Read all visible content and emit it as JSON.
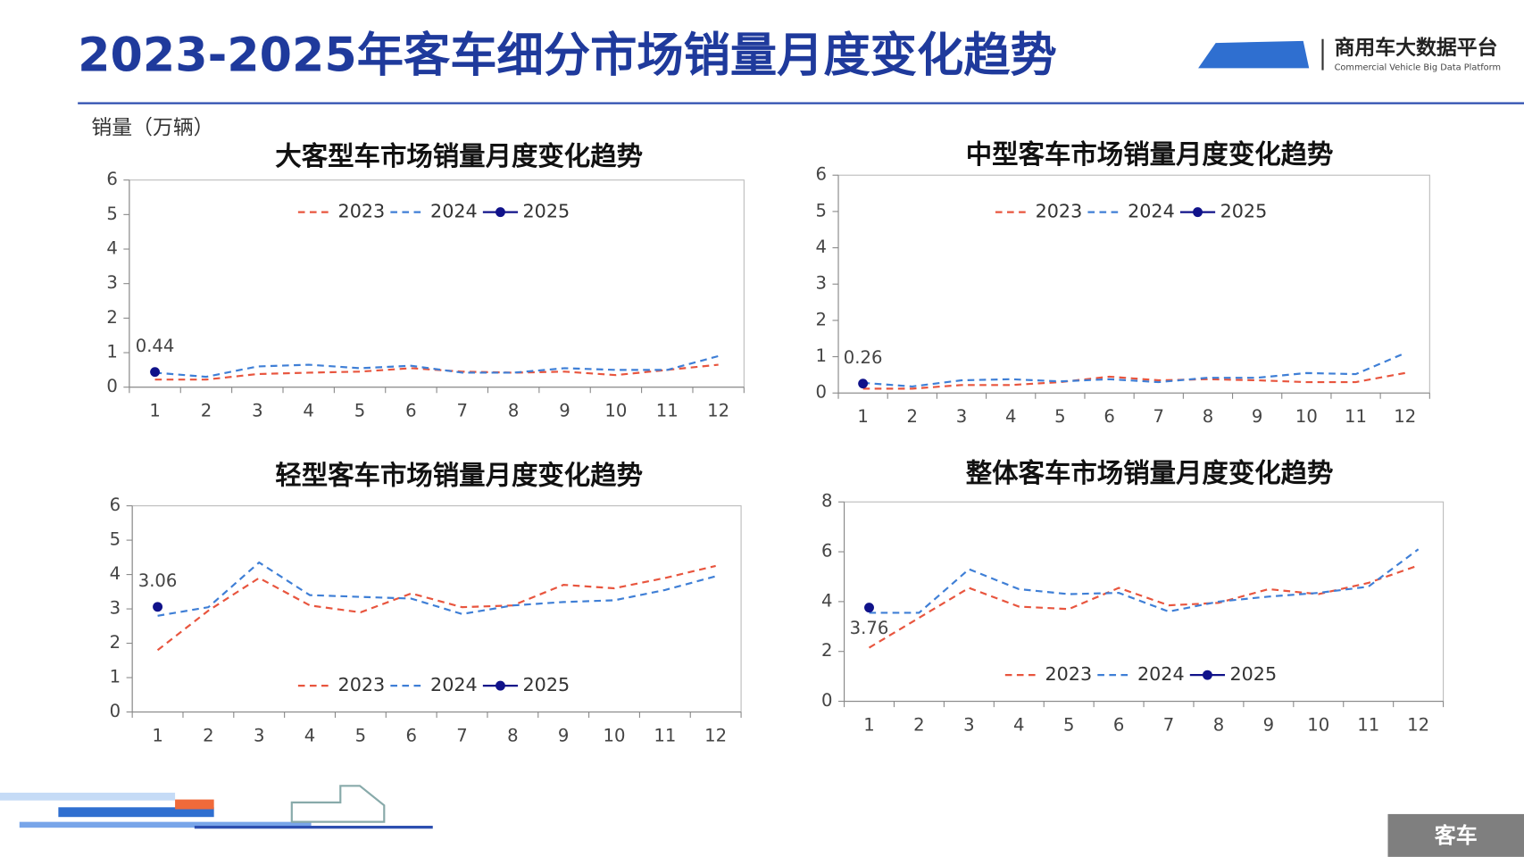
{
  "header": {
    "title": "2023-2025年客车细分市场销量月度变化趋势",
    "brand": "商用车大数据平台",
    "brand_en": "Commercial Vehicle Big Data Platform"
  },
  "y_unit": "销量（万辆）",
  "footer_tag": "客车",
  "chart_data": [
    {
      "type": "line",
      "title": "大客型车市场销量月度变化趋势",
      "categories": [
        "1",
        "2",
        "3",
        "4",
        "5",
        "6",
        "7",
        "8",
        "9",
        "10",
        "11",
        "12"
      ],
      "ylim": [
        0,
        6
      ],
      "yticks": [
        0,
        1,
        2,
        3,
        4,
        5,
        6
      ],
      "legend": "top",
      "label_position": "above",
      "series": [
        {
          "name": "2023",
          "color": "#e8553e",
          "style": "dashed",
          "values": [
            0.22,
            0.22,
            0.38,
            0.42,
            0.45,
            0.55,
            0.45,
            0.42,
            0.45,
            0.35,
            0.5,
            0.65
          ]
        },
        {
          "name": "2024",
          "color": "#3f7fd6",
          "style": "dashed",
          "values": [
            0.42,
            0.3,
            0.6,
            0.65,
            0.55,
            0.62,
            0.42,
            0.42,
            0.55,
            0.5,
            0.5,
            0.9
          ]
        },
        {
          "name": "2025",
          "color": "#10128a",
          "style": "solid",
          "values": [
            0.44,
            null,
            null,
            null,
            null,
            null,
            null,
            null,
            null,
            null,
            null,
            null
          ]
        }
      ]
    },
    {
      "type": "line",
      "title": "中型客车市场销量月度变化趋势",
      "categories": [
        "1",
        "2",
        "3",
        "4",
        "5",
        "6",
        "7",
        "8",
        "9",
        "10",
        "11",
        "12"
      ],
      "ylim": [
        0,
        6
      ],
      "yticks": [
        0,
        1,
        2,
        3,
        4,
        5,
        6
      ],
      "legend": "top",
      "label_position": "above",
      "series": [
        {
          "name": "2023",
          "color": "#e8553e",
          "style": "dashed",
          "values": [
            0.12,
            0.12,
            0.22,
            0.22,
            0.3,
            0.45,
            0.35,
            0.38,
            0.35,
            0.3,
            0.3,
            0.55
          ]
        },
        {
          "name": "2024",
          "color": "#3f7fd6",
          "style": "dashed",
          "values": [
            0.28,
            0.18,
            0.35,
            0.38,
            0.32,
            0.38,
            0.3,
            0.42,
            0.42,
            0.55,
            0.52,
            1.1
          ]
        },
        {
          "name": "2025",
          "color": "#10128a",
          "style": "solid",
          "values": [
            0.26,
            null,
            null,
            null,
            null,
            null,
            null,
            null,
            null,
            null,
            null,
            null
          ]
        }
      ]
    },
    {
      "type": "line",
      "title": "轻型客车市场销量月度变化趋势",
      "categories": [
        "1",
        "2",
        "3",
        "4",
        "5",
        "6",
        "7",
        "8",
        "9",
        "10",
        "11",
        "12"
      ],
      "ylim": [
        0,
        6
      ],
      "yticks": [
        0,
        1,
        2,
        3,
        4,
        5,
        6
      ],
      "legend": "bottom",
      "label_position": "above",
      "series": [
        {
          "name": "2023",
          "color": "#e8553e",
          "style": "dashed",
          "values": [
            1.8,
            2.95,
            3.9,
            3.1,
            2.9,
            3.45,
            3.05,
            3.1,
            3.7,
            3.6,
            3.9,
            4.25
          ]
        },
        {
          "name": "2024",
          "color": "#3f7fd6",
          "style": "dashed",
          "values": [
            2.8,
            3.05,
            4.35,
            3.4,
            3.35,
            3.3,
            2.85,
            3.1,
            3.2,
            3.25,
            3.55,
            3.95
          ]
        },
        {
          "name": "2025",
          "color": "#10128a",
          "style": "solid",
          "values": [
            3.06,
            null,
            null,
            null,
            null,
            null,
            null,
            null,
            null,
            null,
            null,
            null
          ]
        }
      ]
    },
    {
      "type": "line",
      "title": "整体客车市场销量月度变化趋势",
      "categories": [
        "1",
        "2",
        "3",
        "4",
        "5",
        "6",
        "7",
        "8",
        "9",
        "10",
        "11",
        "12"
      ],
      "ylim": [
        0,
        8
      ],
      "yticks": [
        0,
        2,
        4,
        6,
        8
      ],
      "legend": "bottom",
      "label_position": "below",
      "series": [
        {
          "name": "2023",
          "color": "#e8553e",
          "style": "dashed",
          "values": [
            2.15,
            3.35,
            4.55,
            3.8,
            3.7,
            4.55,
            3.85,
            3.95,
            4.5,
            4.3,
            4.75,
            5.45
          ]
        },
        {
          "name": "2024",
          "color": "#3f7fd6",
          "style": "dashed",
          "values": [
            3.55,
            3.55,
            5.3,
            4.5,
            4.3,
            4.35,
            3.6,
            4.0,
            4.2,
            4.35,
            4.6,
            6.1
          ]
        },
        {
          "name": "2025",
          "color": "#10128a",
          "style": "solid",
          "values": [
            3.76,
            null,
            null,
            null,
            null,
            null,
            null,
            null,
            null,
            null,
            null,
            null
          ]
        }
      ]
    }
  ]
}
